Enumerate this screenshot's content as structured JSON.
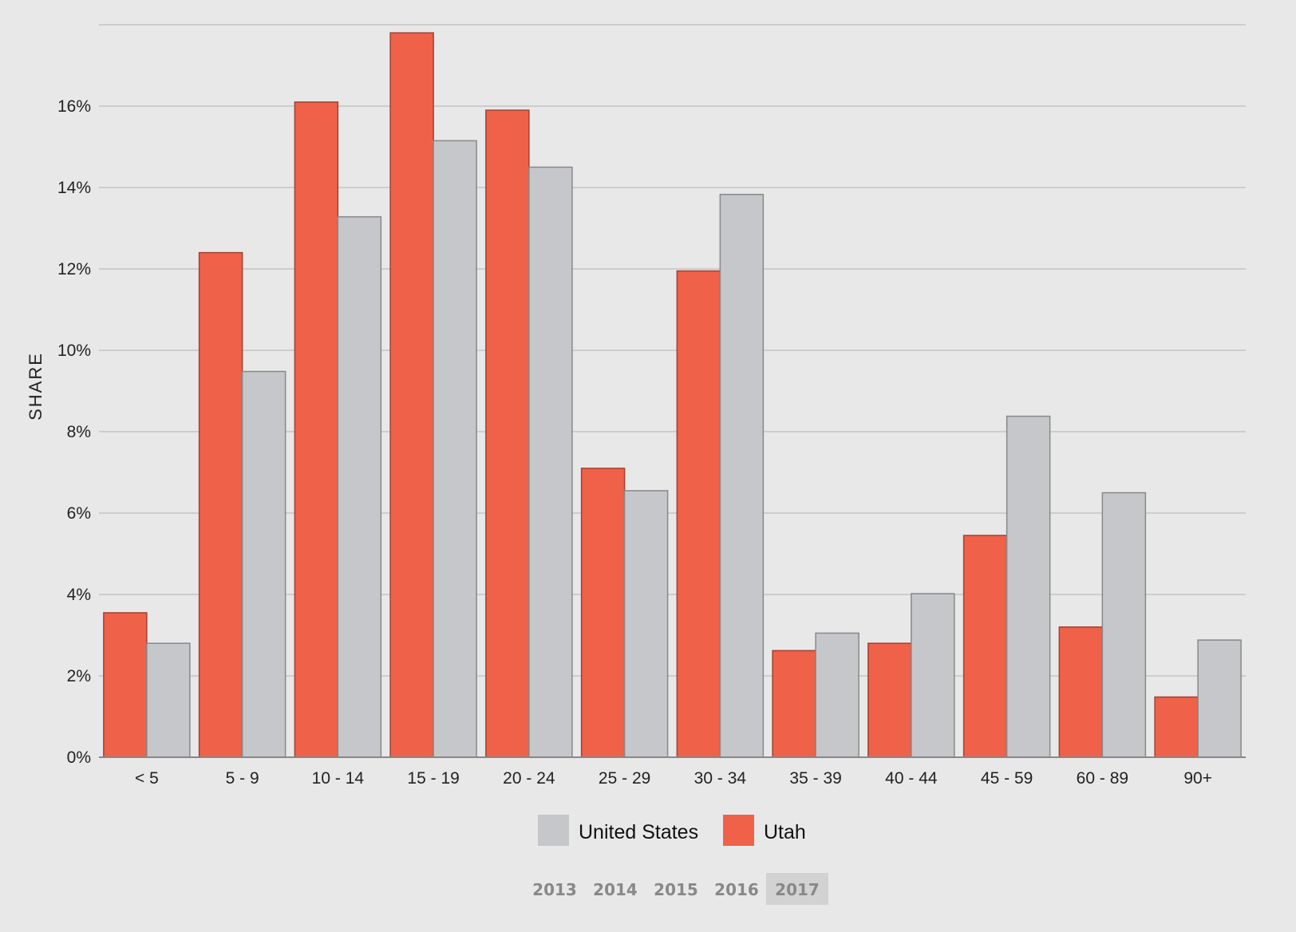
{
  "chart_data": {
    "type": "bar",
    "ylabel": "SHARE",
    "xlabel": "",
    "ylim": [
      0,
      18
    ],
    "y_ticks": [
      "0%",
      "2%",
      "4%",
      "6%",
      "8%",
      "10%",
      "12%",
      "14%",
      "16%"
    ],
    "grid": true,
    "legend_position": "bottom",
    "categories": [
      "< 5",
      "5 - 9",
      "10 - 14",
      "15 - 19",
      "20 - 24",
      "25 - 29",
      "30 - 34",
      "35 - 39",
      "40 - 44",
      "45 - 59",
      "60 - 89",
      "90+"
    ],
    "series": [
      {
        "name": "Utah",
        "color": "#f0614a",
        "values": [
          3.55,
          12.4,
          16.1,
          17.8,
          15.9,
          7.1,
          11.95,
          2.62,
          2.8,
          5.45,
          3.2,
          1.48
        ]
      },
      {
        "name": "United States",
        "color": "#c6c7ca",
        "values": [
          2.8,
          9.48,
          13.28,
          15.15,
          14.5,
          6.55,
          13.83,
          3.05,
          4.02,
          8.38,
          6.5,
          2.88
        ]
      }
    ],
    "legend": [
      {
        "label": "United States",
        "color": "#c6c7ca"
      },
      {
        "label": "Utah",
        "color": "#f0614a"
      }
    ]
  },
  "year_selector": {
    "years": [
      "2013",
      "2014",
      "2015",
      "2016",
      "2017"
    ],
    "selected": "2017"
  }
}
